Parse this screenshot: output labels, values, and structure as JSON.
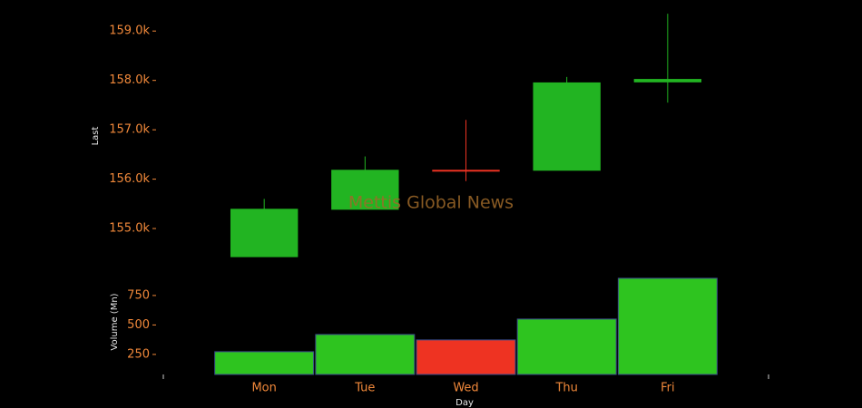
{
  "watermark": "Mettis Global News",
  "chart_data": [
    {
      "type": "candlestick",
      "ylabel": "Last",
      "open": [
        154430,
        155390,
        156180,
        156180,
        157970
      ],
      "high": [
        155600,
        156460,
        157200,
        158070,
        159350
      ],
      "low": [
        154430,
        155390,
        155960,
        156180,
        157550
      ],
      "close": [
        155390,
        156180,
        156170,
        157950,
        158020
      ],
      "up_color": "#22b422",
      "down_color": "#ee3322",
      "ylim": [
        154000,
        159500
      ],
      "yticks": [
        {
          "value": 155000,
          "label": "155.0k"
        },
        {
          "value": 156000,
          "label": "156.0k"
        },
        {
          "value": 157000,
          "label": "157.0k"
        },
        {
          "value": 158000,
          "label": "158.0k"
        },
        {
          "value": 159000,
          "label": "159.0k"
        }
      ]
    },
    {
      "type": "bar",
      "ylabel": "Volume (Mn)",
      "xlabel": "Day",
      "categories": [
        "Mon",
        "Tue",
        "Wed",
        "Thu",
        "Fri"
      ],
      "values": [
        273,
        419,
        373,
        550,
        896
      ],
      "colors": [
        "#2ec41f",
        "#2ec41f",
        "#ee3322",
        "#2ec41f",
        "#2ec41f"
      ],
      "ylim": [
        80,
        920
      ],
      "yticks": [
        250,
        500,
        750
      ]
    }
  ]
}
